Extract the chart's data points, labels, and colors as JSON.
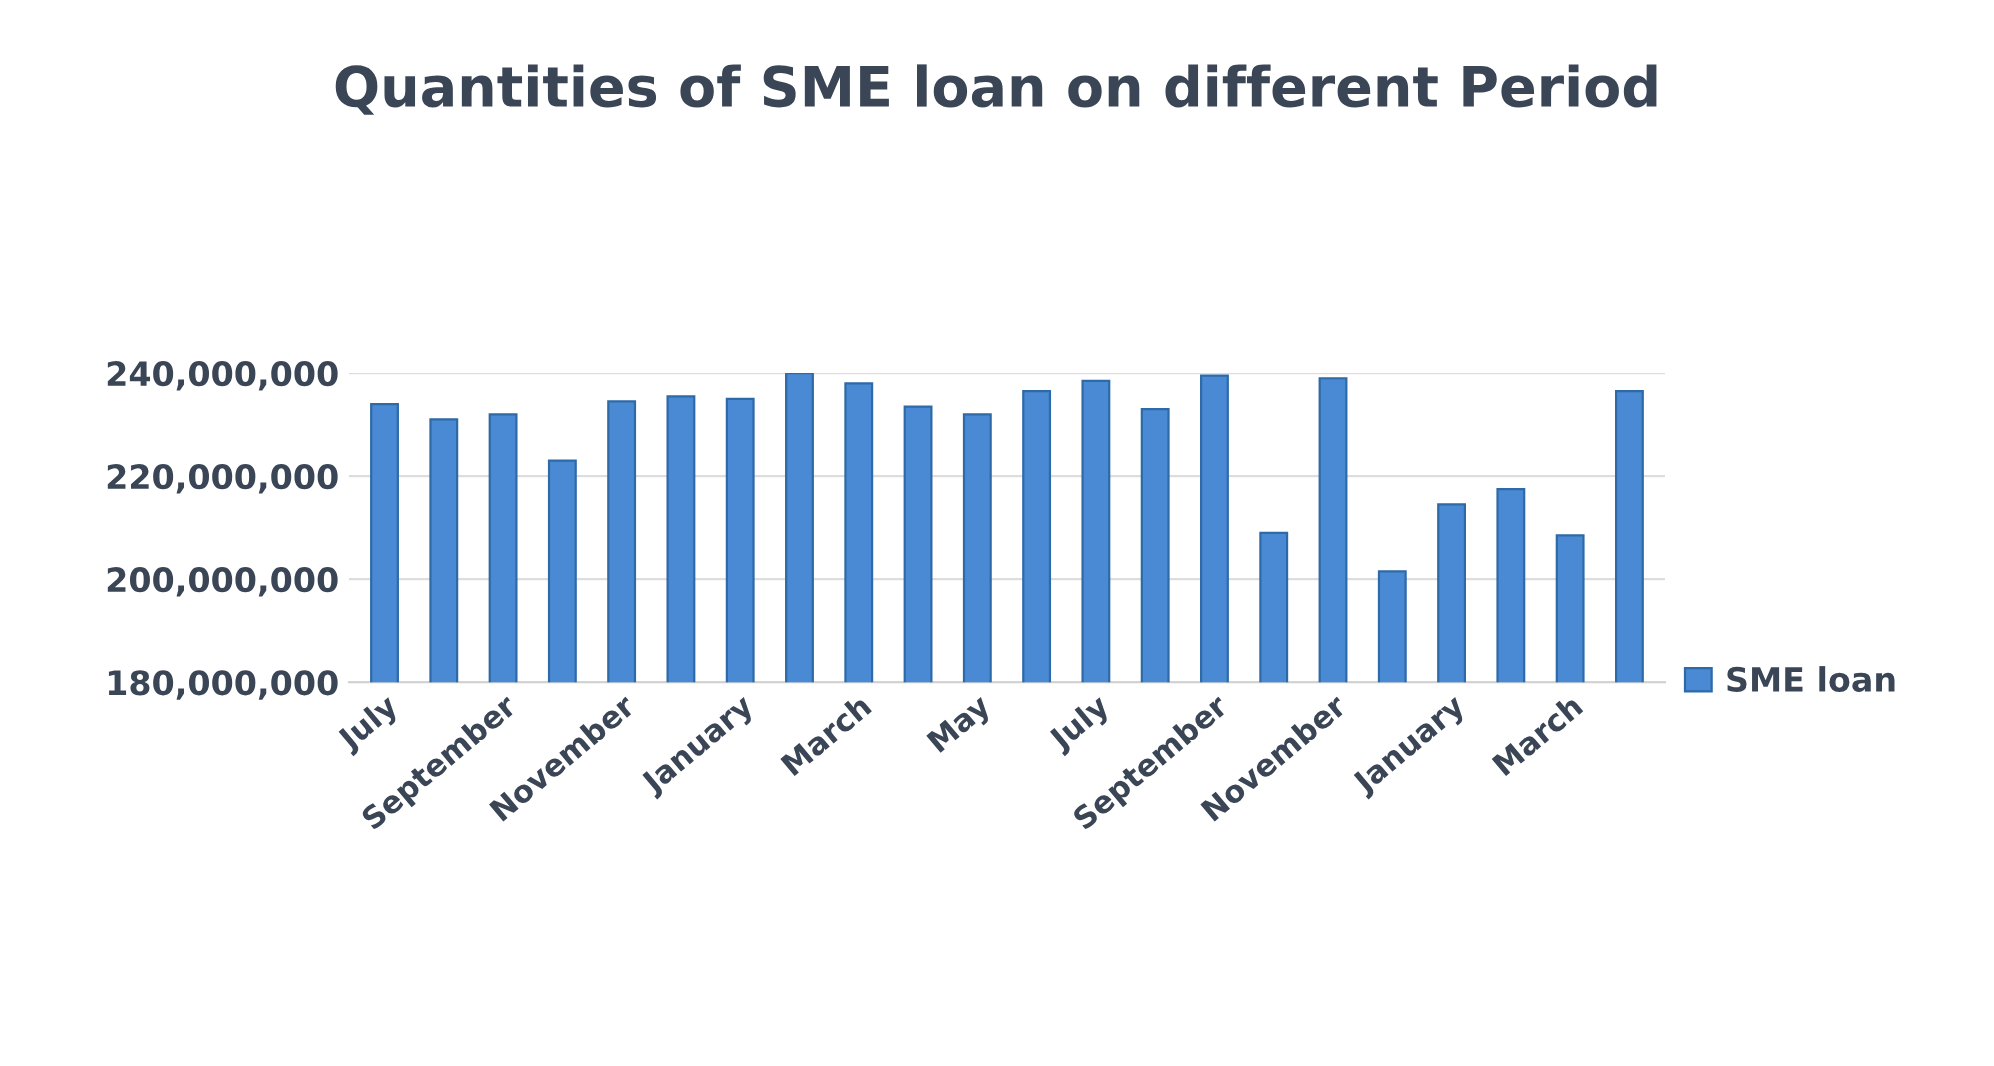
{
  "chart_data": {
    "type": "bar",
    "title": "Quantities of SME loan on different Period",
    "categories": [
      "July",
      null,
      "September",
      null,
      "November",
      null,
      "January",
      null,
      "March",
      null,
      "May",
      null,
      "July",
      null,
      "September",
      null,
      "November",
      null,
      "January",
      null,
      "March",
      null
    ],
    "series": [
      {
        "name": "SME loan",
        "color": "#4a8ad4",
        "values": [
          234000000,
          231000000,
          232000000,
          223000000,
          234500000,
          235500000,
          235000000,
          240000000,
          238000000,
          233500000,
          232000000,
          236500000,
          238500000,
          233000000,
          239500000,
          209000000,
          239000000,
          201500000,
          214500000,
          217500000,
          208500000,
          236500000
        ]
      }
    ],
    "ylim": [
      180000000,
      240000000
    ],
    "yticks": [
      {
        "value": 180000000,
        "label": "180,000,000"
      },
      {
        "value": 200000000,
        "label": "200,000,000"
      },
      {
        "value": 220000000,
        "label": "220,000,000"
      },
      {
        "value": 240000000,
        "label": "240,000,000"
      }
    ],
    "grid": "y",
    "legend": "right"
  }
}
